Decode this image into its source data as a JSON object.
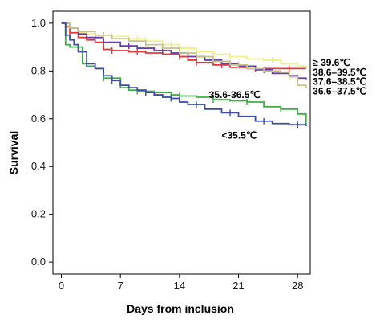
{
  "chart_data": {
    "type": "line",
    "title": "",
    "xlabel": "Days  from inclusion",
    "ylabel": "Survival",
    "xlim": [
      -1,
      29.5
    ],
    "ylim": [
      -0.05,
      1.05
    ],
    "x_ticks": [
      0,
      7,
      14,
      21,
      28
    ],
    "x_tick_labels": [
      "0",
      "7",
      "14",
      "21",
      "28"
    ],
    "y_ticks": [
      0.0,
      0.2,
      0.4,
      0.6,
      0.8,
      1.0
    ],
    "y_tick_labels": [
      "0.0",
      "0.2",
      "0.4",
      "0.6",
      "0.8",
      "1.0"
    ],
    "grid": false,
    "legend": "none",
    "series": [
      {
        "name": "≥ 39.6℃",
        "color": "#f0ef8a",
        "points": [
          [
            0,
            1.0
          ],
          [
            0.5,
            0.99
          ],
          [
            1,
            0.98
          ],
          [
            2,
            0.96
          ],
          [
            3,
            0.955
          ],
          [
            4,
            0.95
          ],
          [
            6,
            0.945
          ],
          [
            8,
            0.935
          ],
          [
            10,
            0.925
          ],
          [
            12,
            0.91
          ],
          [
            14,
            0.895
          ],
          [
            16,
            0.88
          ],
          [
            18,
            0.87
          ],
          [
            20,
            0.86
          ],
          [
            22,
            0.85
          ],
          [
            24,
            0.845
          ],
          [
            26,
            0.83
          ],
          [
            28,
            0.82
          ],
          [
            29,
            0.81
          ]
        ],
        "censors": [
          3,
          6,
          9,
          13,
          15,
          20,
          25
        ]
      },
      {
        "name": "38.6–39.5℃",
        "color": "#e23a3a",
        "points": [
          [
            0,
            1.0
          ],
          [
            0.5,
            0.985
          ],
          [
            1,
            0.96
          ],
          [
            2,
            0.94
          ],
          [
            3,
            0.93
          ],
          [
            4,
            0.92
          ],
          [
            5,
            0.89
          ],
          [
            6,
            0.885
          ],
          [
            8,
            0.88
          ],
          [
            10,
            0.875
          ],
          [
            12,
            0.87
          ],
          [
            14,
            0.86
          ],
          [
            15,
            0.845
          ],
          [
            16,
            0.835
          ],
          [
            18,
            0.825
          ],
          [
            20,
            0.815
          ],
          [
            22,
            0.81
          ],
          [
            24,
            0.81
          ],
          [
            26,
            0.81
          ],
          [
            29,
            0.81
          ]
        ],
        "censors": [
          1,
          6,
          9,
          14,
          16,
          19,
          23,
          27
        ]
      },
      {
        "name": "37.6–38.5℃",
        "color": "#6a3da8",
        "points": [
          [
            0,
            1.0
          ],
          [
            1,
            0.98
          ],
          [
            2,
            0.955
          ],
          [
            3,
            0.94
          ],
          [
            5,
            0.92
          ],
          [
            7,
            0.905
          ],
          [
            9,
            0.895
          ],
          [
            11,
            0.885
          ],
          [
            13,
            0.875
          ],
          [
            15,
            0.86
          ],
          [
            17,
            0.845
          ],
          [
            19,
            0.83
          ],
          [
            21,
            0.82
          ],
          [
            23,
            0.805
          ],
          [
            25,
            0.79
          ],
          [
            27,
            0.78
          ],
          [
            28,
            0.77
          ],
          [
            29,
            0.765
          ]
        ],
        "censors": [
          4,
          8,
          12,
          16,
          20,
          24,
          28
        ]
      },
      {
        "name": "36.6–37.5℃",
        "color": "#c8c28e",
        "points": [
          [
            0,
            1.0
          ],
          [
            1,
            0.98
          ],
          [
            2,
            0.965
          ],
          [
            4,
            0.95
          ],
          [
            6,
            0.935
          ],
          [
            8,
            0.925
          ],
          [
            10,
            0.91
          ],
          [
            12,
            0.895
          ],
          [
            14,
            0.875
          ],
          [
            16,
            0.86
          ],
          [
            18,
            0.84
          ],
          [
            20,
            0.825
          ],
          [
            22,
            0.81
          ],
          [
            24,
            0.8
          ],
          [
            26,
            0.795
          ],
          [
            27,
            0.775
          ],
          [
            28,
            0.74
          ],
          [
            29,
            0.73
          ]
        ],
        "censors": [
          5,
          10,
          15,
          21,
          27
        ]
      },
      {
        "name": "35.6-36.5℃",
        "color": "#3cb043",
        "points": [
          [
            0,
            1.0
          ],
          [
            0.5,
            0.91
          ],
          [
            1,
            0.9
          ],
          [
            2,
            0.9
          ],
          [
            2.5,
            0.83
          ],
          [
            3,
            0.82
          ],
          [
            4,
            0.81
          ],
          [
            5,
            0.77
          ],
          [
            7,
            0.73
          ],
          [
            8,
            0.72
          ],
          [
            9,
            0.715
          ],
          [
            11,
            0.71
          ],
          [
            13,
            0.7
          ],
          [
            14,
            0.695
          ],
          [
            16,
            0.69
          ],
          [
            18,
            0.68
          ],
          [
            20,
            0.675
          ],
          [
            22,
            0.67
          ],
          [
            24,
            0.65
          ],
          [
            26,
            0.64
          ],
          [
            28,
            0.62
          ],
          [
            29,
            0.57
          ]
        ],
        "censors": [
          2,
          5,
          9,
          14,
          18,
          22,
          26
        ]
      },
      {
        "name": "<35.5℃",
        "color": "#3a4fa3",
        "points": [
          [
            0,
            1.0
          ],
          [
            0.5,
            0.95
          ],
          [
            1,
            0.93
          ],
          [
            1.5,
            0.91
          ],
          [
            2,
            0.88
          ],
          [
            3,
            0.83
          ],
          [
            4,
            0.81
          ],
          [
            5,
            0.78
          ],
          [
            6,
            0.76
          ],
          [
            7,
            0.74
          ],
          [
            8,
            0.73
          ],
          [
            9,
            0.72
          ],
          [
            10,
            0.71
          ],
          [
            11,
            0.7
          ],
          [
            12,
            0.69
          ],
          [
            13,
            0.685
          ],
          [
            14,
            0.67
          ],
          [
            15,
            0.66
          ],
          [
            17,
            0.64
          ],
          [
            19,
            0.625
          ],
          [
            21,
            0.61
          ],
          [
            23,
            0.59
          ],
          [
            25,
            0.58
          ],
          [
            27,
            0.575
          ],
          [
            29,
            0.57
          ]
        ],
        "censors": [
          3,
          6,
          10,
          13,
          16,
          20,
          24,
          28
        ]
      }
    ],
    "annotations": [
      {
        "text": "≥ 39.6℃",
        "x": 29.8,
        "y": 0.835,
        "anchor": "start"
      },
      {
        "text": "38.6–39.5℃",
        "x": 29.8,
        "y": 0.795,
        "anchor": "start"
      },
      {
        "text": "37.6–38.5℃",
        "x": 29.8,
        "y": 0.755,
        "anchor": "start"
      },
      {
        "text": "36.6–37.5℃",
        "x": 29.8,
        "y": 0.715,
        "anchor": "start"
      },
      {
        "text": "35.6-36.5℃",
        "x": 17.5,
        "y": 0.7,
        "anchor": "start"
      },
      {
        "text": "<35.5℃",
        "x": 19,
        "y": 0.53,
        "anchor": "start"
      }
    ]
  }
}
